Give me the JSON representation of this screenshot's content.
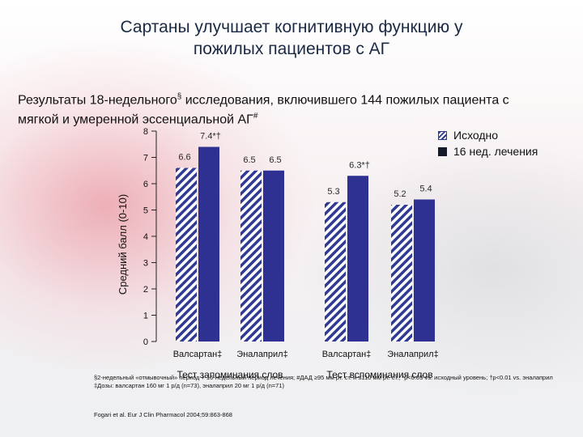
{
  "title": "Сартаны улучшает когнитивную функцию у пожилых пациентов с АГ",
  "subtitle": {
    "text_before": "Результаты 18-недельного",
    "sup1": "§",
    "text_middle": " исследования, включившего 144 пожилых пациента с мягкой и умеренной эссенциальной АГ",
    "sup2": "#"
  },
  "legend": {
    "baseline": "Исходно",
    "treatment": "16 нед. лечения"
  },
  "colors": {
    "baseline_hatch": "#2f3a94",
    "treatment": "#2e3192",
    "accent_title": "#1a2a44"
  },
  "chart_data": {
    "type": "bar",
    "ylabel": "Средний балл (0-10)",
    "ylim": [
      0,
      8
    ],
    "yticks": [
      0,
      1,
      2,
      3,
      4,
      5,
      6,
      7,
      8
    ],
    "groups": [
      {
        "label": "Тест запоминания слов",
        "categories": [
          "Валсартан‡",
          "Эналаприл‡"
        ]
      },
      {
        "label": "Тест вспоминания слов",
        "categories": [
          "Валсартан‡",
          "Эналаприл‡"
        ]
      }
    ],
    "categories": [
      "Валсартан‡",
      "Эналаприл‡",
      "Валсартан‡",
      "Эналаприл‡"
    ],
    "series": [
      {
        "name": "Исходно",
        "values": [
          6.6,
          6.5,
          5.3,
          5.2
        ],
        "labels": [
          "6.6",
          "6.5",
          "5.3",
          "5.2"
        ]
      },
      {
        "name": "16 нед. лечения",
        "values": [
          7.4,
          6.5,
          6.3,
          5.4
        ],
        "labels": [
          "7.4*†",
          "6.5",
          "6.3*†",
          "5.4"
        ]
      }
    ]
  },
  "footnote": "§2-недельный «отмывочный» период + 16-недельный период лечения; #ДАД ≥95 мм рт. ст. и ≤110 мм рт. ст.; *p<0.05 vs. исходный уровень; †p<0.01 vs. эналаприл ‡Дозы: валсартан 160 мг 1 р/д (n=73), эналаприл 20 мг 1 р/д (n=71)",
  "citation": "Fogari et al. Eur J Clin Pharmacol 2004;59:863-868"
}
